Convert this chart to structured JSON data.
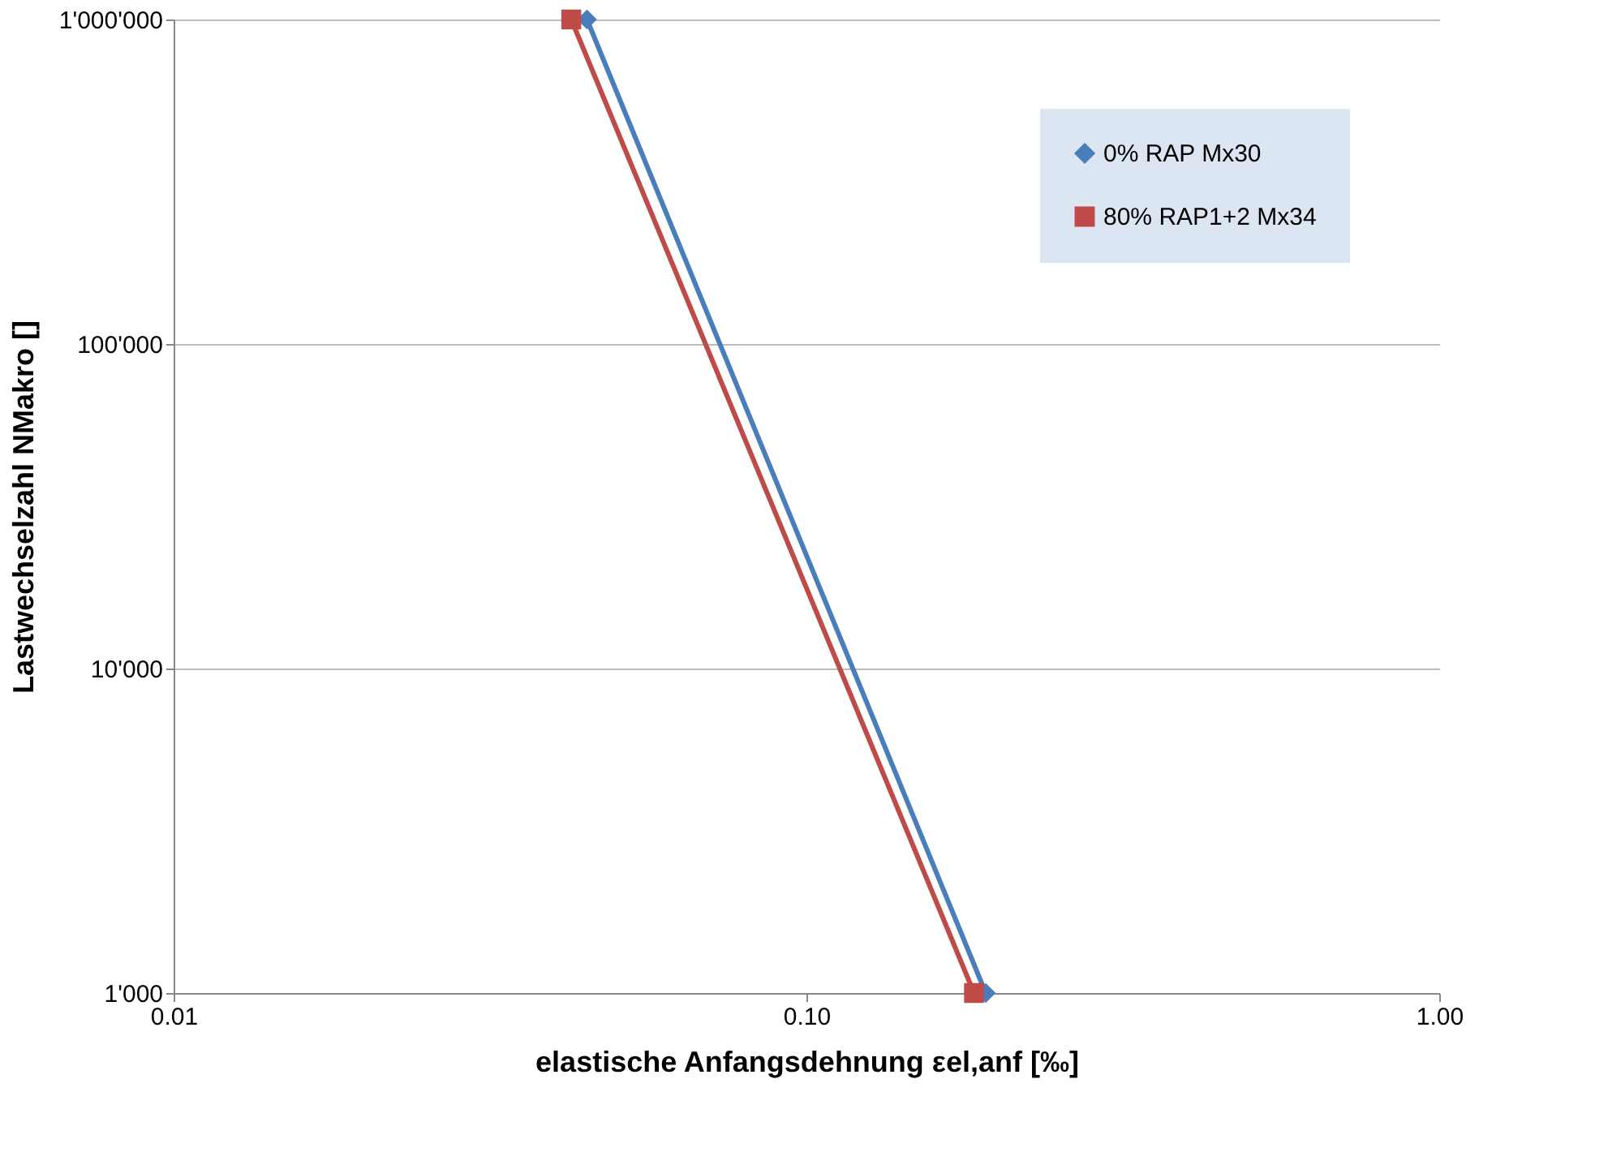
{
  "chart_data": {
    "type": "line",
    "xlabel": "elastische Anfangsdehnung εel,anf [‰]",
    "ylabel": "Lastwechselzahl NMakro []",
    "log": "xy",
    "grid": "y",
    "legend": "top right",
    "xlim": [
      0.01,
      1
    ],
    "xticks": [
      {
        "value": 0.01,
        "label": "0.01"
      },
      {
        "value": 0.1,
        "label": "0.10"
      },
      {
        "value": 1,
        "label": "1.00"
      }
    ],
    "ylim": [
      1000,
      1000000
    ],
    "yticks": [
      {
        "value": 1000,
        "label": "1'000"
      },
      {
        "value": 10000,
        "label": "10'000"
      },
      {
        "value": 100000,
        "label": "100'000"
      },
      {
        "value": 1000000,
        "label": "1'000'000"
      }
    ],
    "series": [
      {
        "name": "0% RAP Mx30",
        "color": "#4a7ebb",
        "marker": "diamond",
        "x": [
          0.045,
          0.192
        ],
        "values": [
          1000000,
          1000
        ]
      },
      {
        "name": "80% RAP1+2 Mx34",
        "color": "#be4b48",
        "marker": "square",
        "x": [
          0.0425,
          0.184
        ],
        "values": [
          1000000,
          1000
        ]
      }
    ]
  }
}
